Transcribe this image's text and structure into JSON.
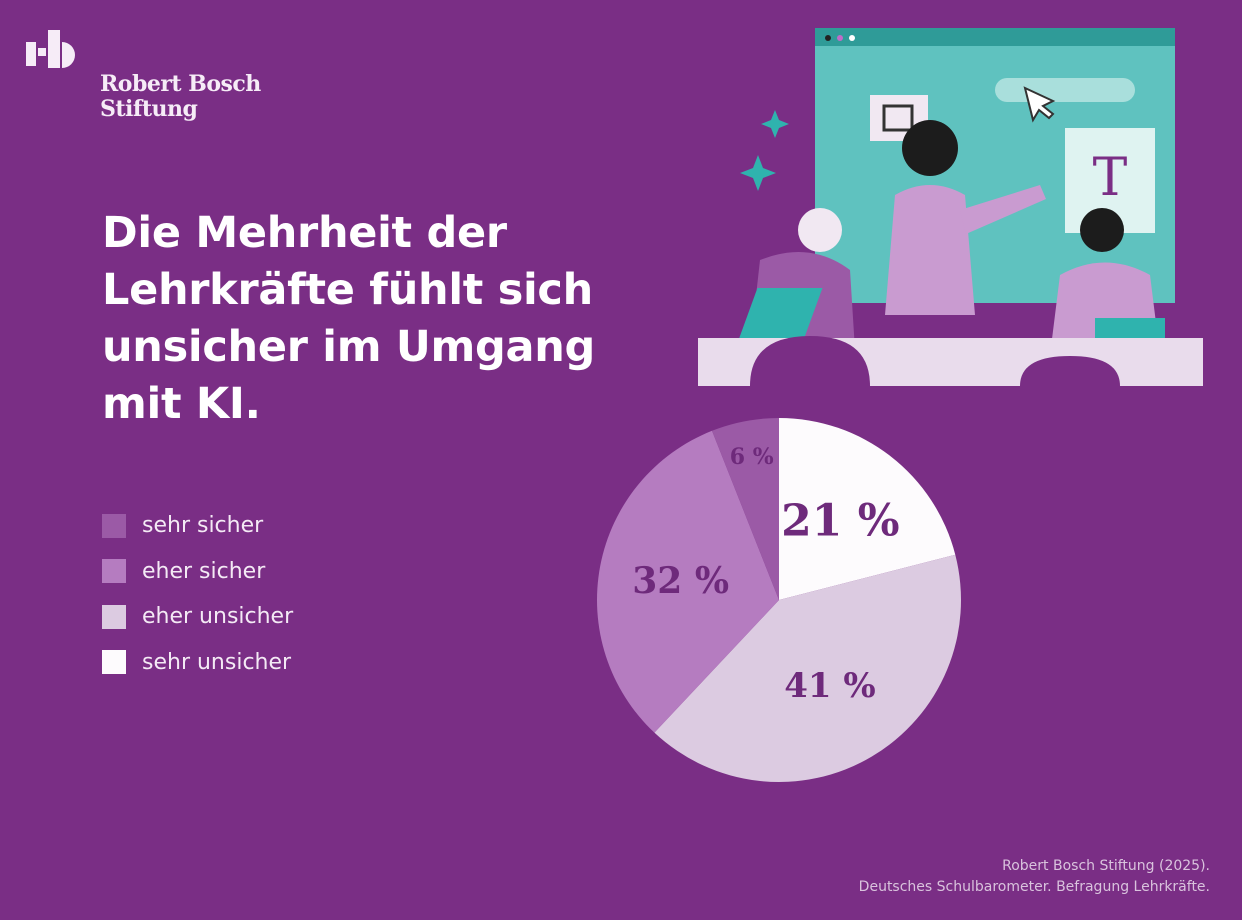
{
  "brand": {
    "name_line1": "Robert Bosch",
    "name_line2": "Stiftung",
    "logo_text": "rb"
  },
  "title": "Die Mehrheit der Lehrkräfte fühlt sich unsicher im Umgang mit KI.",
  "illustration": {
    "screen_letter": "T"
  },
  "colors": {
    "background": "#7a2e85",
    "label_text": "#6e2a7b"
  },
  "chart_data": {
    "type": "pie",
    "start_angle": "top, clockwise",
    "legend_position": "left",
    "slices": [
      {
        "name": "sehr unsicher",
        "value": 21,
        "label": "21 %",
        "color": "#fdfbfd"
      },
      {
        "name": "eher unsicher",
        "value": 41,
        "label": "41 %",
        "color": "#dccbe1"
      },
      {
        "name": "eher sicher",
        "value": 32,
        "label": "32 %",
        "color": "#b57cc0"
      },
      {
        "name": "sehr sicher",
        "value": 6,
        "label": "6 %",
        "color": "#9b5aa6"
      }
    ],
    "legend": [
      {
        "label": "sehr sicher",
        "color": "#9b5aa6"
      },
      {
        "label": "eher sicher",
        "color": "#b57cc0"
      },
      {
        "label": "eher unsicher",
        "color": "#dccbe1"
      },
      {
        "label": "sehr unsicher",
        "color": "#fdfbfd"
      }
    ]
  },
  "source": {
    "line1": "Robert Bosch Stiftung (2025).",
    "line2": "Deutsches Schulbarometer. Befragung Lehrkräfte."
  }
}
